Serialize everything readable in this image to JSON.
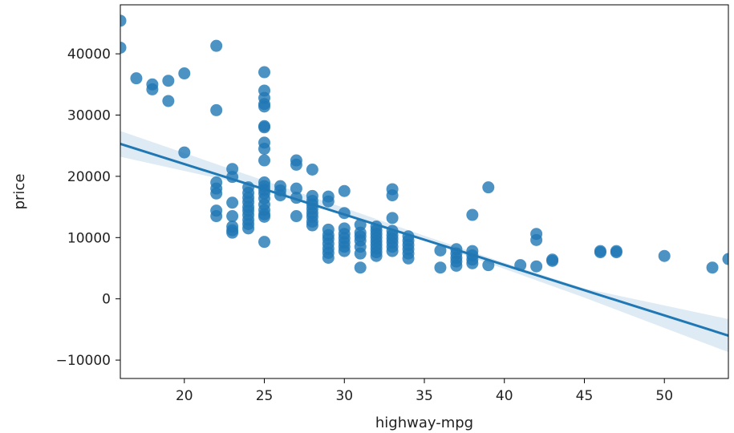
{
  "chart_data": {
    "type": "scatter",
    "title": "",
    "xlabel": "highway-mpg",
    "ylabel": "price",
    "xlim": [
      16,
      54
    ],
    "ylim": [
      -13000,
      48000
    ],
    "grid": false,
    "legend": false,
    "xticks": [
      20,
      25,
      30,
      35,
      40,
      45,
      50
    ],
    "yticks": [
      -10000,
      0,
      10000,
      20000,
      30000,
      40000
    ],
    "xtick_labels": [
      "20",
      "25",
      "30",
      "35",
      "40",
      "45",
      "50"
    ],
    "ytick_labels": [
      "−10000",
      "0",
      "10000",
      "20000",
      "30000",
      "40000"
    ],
    "point_color": "#1f77b4",
    "regression": {
      "color": "#1f77b4",
      "ci_color": "#1f77b4",
      "line": [
        [
          16,
          25300
        ],
        [
          54,
          -6000
        ]
      ],
      "ci_upper": [
        [
          16,
          27400
        ],
        [
          25,
          19300
        ],
        [
          30,
          14850
        ],
        [
          35,
          10300
        ],
        [
          40,
          5900
        ],
        [
          45,
          1700
        ],
        [
          54,
          -3300
        ]
      ],
      "ci_lower": [
        [
          16,
          23200
        ],
        [
          25,
          18000
        ],
        [
          30,
          13850
        ],
        [
          35,
          9500
        ],
        [
          40,
          4900
        ],
        [
          45,
          200
        ],
        [
          54,
          -8700
        ]
      ]
    },
    "points": [
      [
        16,
        45400
      ],
      [
        16,
        41000
      ],
      [
        17,
        36000
      ],
      [
        18,
        35000
      ],
      [
        18,
        34200
      ],
      [
        19,
        35600
      ],
      [
        19,
        32300
      ],
      [
        20,
        36800
      ],
      [
        20,
        23900
      ],
      [
        22,
        41300
      ],
      [
        22,
        30800
      ],
      [
        22,
        19000
      ],
      [
        22,
        18000
      ],
      [
        22,
        17200
      ],
      [
        22,
        14400
      ],
      [
        22,
        13500
      ],
      [
        23,
        21200
      ],
      [
        23,
        19900
      ],
      [
        23,
        15700
      ],
      [
        23,
        13500
      ],
      [
        23,
        11800
      ],
      [
        23,
        11200
      ],
      [
        23,
        10800
      ],
      [
        24,
        18200
      ],
      [
        24,
        17300
      ],
      [
        24,
        16500
      ],
      [
        24,
        15800
      ],
      [
        24,
        15000
      ],
      [
        24,
        14400
      ],
      [
        24,
        13700
      ],
      [
        24,
        12900
      ],
      [
        24,
        12200
      ],
      [
        24,
        11500
      ],
      [
        25,
        37000
      ],
      [
        25,
        34000
      ],
      [
        25,
        32800
      ],
      [
        25,
        31800
      ],
      [
        25,
        31400
      ],
      [
        25,
        28200
      ],
      [
        25,
        28000
      ],
      [
        25,
        25500
      ],
      [
        25,
        24500
      ],
      [
        25,
        22600
      ],
      [
        25,
        19000
      ],
      [
        25,
        18400
      ],
      [
        25,
        17800
      ],
      [
        25,
        17200
      ],
      [
        25,
        16400
      ],
      [
        25,
        15400
      ],
      [
        25,
        14500
      ],
      [
        25,
        13800
      ],
      [
        25,
        13400
      ],
      [
        25,
        9300
      ],
      [
        26,
        18400
      ],
      [
        26,
        17700
      ],
      [
        26,
        16900
      ],
      [
        27,
        22600
      ],
      [
        27,
        21900
      ],
      [
        27,
        18000
      ],
      [
        27,
        16500
      ],
      [
        27,
        13500
      ],
      [
        28,
        21100
      ],
      [
        28,
        16800
      ],
      [
        28,
        16000
      ],
      [
        28,
        15400
      ],
      [
        28,
        14700
      ],
      [
        28,
        14000
      ],
      [
        28,
        13400
      ],
      [
        28,
        12600
      ],
      [
        28,
        12000
      ],
      [
        29,
        16700
      ],
      [
        29,
        15900
      ],
      [
        29,
        11300
      ],
      [
        29,
        10400
      ],
      [
        29,
        9800
      ],
      [
        29,
        9000
      ],
      [
        29,
        8200
      ],
      [
        29,
        7500
      ],
      [
        29,
        6700
      ],
      [
        30,
        17600
      ],
      [
        30,
        14000
      ],
      [
        30,
        11500
      ],
      [
        30,
        10600
      ],
      [
        30,
        9900
      ],
      [
        30,
        9200
      ],
      [
        30,
        8500
      ],
      [
        30,
        7800
      ],
      [
        31,
        12100
      ],
      [
        31,
        10800
      ],
      [
        31,
        10200
      ],
      [
        31,
        9500
      ],
      [
        31,
        8500
      ],
      [
        31,
        7400
      ],
      [
        31,
        5100
      ],
      [
        32,
        11800
      ],
      [
        32,
        11200
      ],
      [
        32,
        10600
      ],
      [
        32,
        10000
      ],
      [
        32,
        9400
      ],
      [
        32,
        8800
      ],
      [
        32,
        8200
      ],
      [
        32,
        7600
      ],
      [
        32,
        7000
      ],
      [
        33,
        17900
      ],
      [
        33,
        16900
      ],
      [
        33,
        13200
      ],
      [
        33,
        11100
      ],
      [
        33,
        10400
      ],
      [
        33,
        9800
      ],
      [
        33,
        9200
      ],
      [
        33,
        8500
      ],
      [
        33,
        7800
      ],
      [
        34,
        10200
      ],
      [
        34,
        9500
      ],
      [
        34,
        8800
      ],
      [
        34,
        8100
      ],
      [
        34,
        7400
      ],
      [
        34,
        6600
      ],
      [
        36,
        7900
      ],
      [
        36,
        5100
      ],
      [
        37,
        8100
      ],
      [
        37,
        7400
      ],
      [
        37,
        6700
      ],
      [
        37,
        6100
      ],
      [
        37,
        5400
      ],
      [
        38,
        13700
      ],
      [
        38,
        7800
      ],
      [
        38,
        7100
      ],
      [
        38,
        6400
      ],
      [
        38,
        5800
      ],
      [
        39,
        18200
      ],
      [
        39,
        5500
      ],
      [
        41,
        5500
      ],
      [
        42,
        10600
      ],
      [
        42,
        9600
      ],
      [
        42,
        5300
      ],
      [
        43,
        6400
      ],
      [
        43,
        6200
      ],
      [
        46,
        7800
      ],
      [
        46,
        7600
      ],
      [
        47,
        7800
      ],
      [
        47,
        7600
      ],
      [
        50,
        7000
      ],
      [
        53,
        5100
      ],
      [
        54,
        6500
      ]
    ]
  }
}
